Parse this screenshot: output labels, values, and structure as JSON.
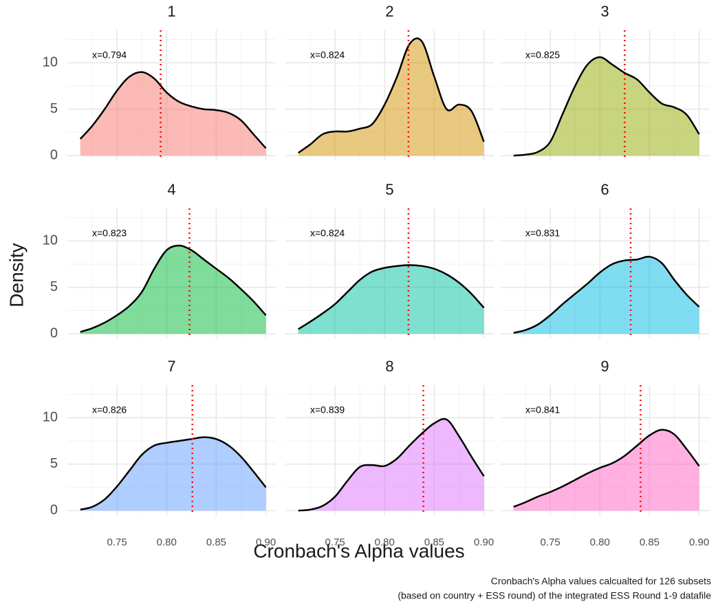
{
  "chart_data": {
    "type": "density-facets",
    "xlabel": "Cronbach's Alpha values",
    "ylabel": "Density",
    "caption": [
      "Cronbach's Alpha values calcualted for 126 subsets",
      "(based on country + ESS round) of the integrated ESS Round 1-9 datafile"
    ],
    "xlim": [
      0.7,
      0.91
    ],
    "xticks": [
      0.75,
      {
        "value": 0.8,
        "label": "0.80"
      },
      0.85,
      {
        "value": 0.9,
        "label": "0.90"
      }
    ],
    "ylim": [
      -0.5,
      13.5
    ],
    "yticks": [
      0,
      5,
      10
    ],
    "grid": true,
    "vline_color": "#ff0000",
    "x": [
      0.713,
      0.725,
      0.7375,
      0.75,
      0.7625,
      0.775,
      0.7875,
      0.8,
      0.8125,
      0.825,
      0.8375,
      0.85,
      0.8625,
      0.875,
      0.8875,
      0.9
    ],
    "panels": [
      {
        "title": "1",
        "color": "#F8766D",
        "vline": 0.794,
        "annotation": "x=0.794",
        "values": [
          1.8,
          3.2,
          5,
          7,
          8.5,
          9.0,
          8.3,
          6.8,
          5.8,
          5.3,
          5.0,
          4.9,
          4.6,
          3.8,
          2.3,
          0.8
        ]
      },
      {
        "title": "2",
        "color": "#D39200",
        "vline": 0.824,
        "annotation": "x=0.824",
        "values": [
          0.3,
          1.2,
          2.3,
          2.6,
          2.6,
          2.9,
          3.4,
          5.5,
          8.5,
          12.0,
          12.3,
          8.5,
          5.0,
          5.5,
          4.8,
          1.5
        ]
      },
      {
        "title": "3",
        "color": "#93AA00",
        "vline": 0.825,
        "annotation": "x=0.825",
        "values": [
          0,
          0.1,
          0.4,
          1.5,
          4.5,
          7.5,
          9.8,
          10.6,
          9.8,
          8.9,
          8.2,
          6.8,
          5.6,
          5.2,
          4.4,
          2.3
        ]
      },
      {
        "title": "4",
        "color": "#00BA38",
        "vline": 0.823,
        "annotation": "x=0.823",
        "values": [
          0.2,
          0.6,
          1.2,
          2.0,
          3.0,
          4.5,
          7.0,
          9.0,
          9.5,
          9.0,
          8.0,
          7.0,
          6.0,
          4.8,
          3.5,
          2.0
        ]
      },
      {
        "title": "5",
        "color": "#00C19F",
        "vline": 0.824,
        "annotation": "x=0.824",
        "values": [
          0.5,
          1.3,
          2.2,
          3.2,
          4.5,
          5.8,
          6.7,
          7.1,
          7.3,
          7.4,
          7.3,
          7.0,
          6.4,
          5.5,
          4.3,
          2.8
        ]
      },
      {
        "title": "6",
        "color": "#00B9E3",
        "vline": 0.831,
        "annotation": "x=0.831",
        "values": [
          0.1,
          0.4,
          1.0,
          2.0,
          3.2,
          4.3,
          5.4,
          6.6,
          7.5,
          7.9,
          8.0,
          8.3,
          7.6,
          5.8,
          4.2,
          2.9
        ]
      },
      {
        "title": "7",
        "color": "#619CFF",
        "vline": 0.826,
        "annotation": "x=0.826",
        "values": [
          0.1,
          0.4,
          1.2,
          2.6,
          4.3,
          6.0,
          7.0,
          7.3,
          7.5,
          7.7,
          7.9,
          7.7,
          7.0,
          5.8,
          4.2,
          2.5
        ]
      },
      {
        "title": "8",
        "color": "#DB72FB",
        "vline": 0.839,
        "annotation": "x=0.839",
        "values": [
          0,
          0.1,
          0.5,
          1.5,
          3.2,
          4.7,
          4.9,
          4.8,
          5.6,
          7.0,
          8.3,
          9.4,
          9.8,
          8.0,
          5.8,
          3.7
        ]
      },
      {
        "title": "9",
        "color": "#FF61C3",
        "vline": 0.841,
        "annotation": "x=0.841",
        "values": [
          0.4,
          0.9,
          1.5,
          2.0,
          2.6,
          3.3,
          4.0,
          4.6,
          5.1,
          5.9,
          7.0,
          8.1,
          8.7,
          8.2,
          6.6,
          4.8
        ]
      }
    ]
  }
}
